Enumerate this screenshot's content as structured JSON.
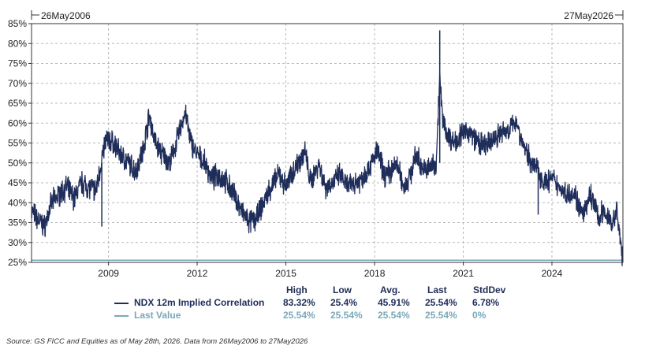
{
  "chart_data": {
    "type": "line",
    "date_range": {
      "start": "26May2006",
      "end": "27May2026"
    },
    "x_range": [
      "2006-05-26",
      "2026-05-27"
    ],
    "ylim": [
      25,
      85
    ],
    "y_ticks": [
      "25%",
      "30%",
      "35%",
      "40%",
      "45%",
      "50%",
      "55%",
      "60%",
      "65%",
      "70%",
      "75%",
      "80%",
      "85%"
    ],
    "y_tick_values": [
      25,
      30,
      35,
      40,
      45,
      50,
      55,
      60,
      65,
      70,
      75,
      80,
      85
    ],
    "x_ticks": [
      "2009",
      "2012",
      "2015",
      "2018",
      "2021",
      "2024"
    ],
    "x_tick_values": [
      "2009-01-01",
      "2012-01-01",
      "2015-01-01",
      "2018-01-01",
      "2021-01-01",
      "2024-01-01"
    ],
    "grid": true,
    "colors": {
      "series": "#1f2d5a",
      "last_value": "#7aa8b8"
    },
    "series": [
      {
        "name": "NDX 12m Implied Correlation",
        "color": "#1f2d5a",
        "x": [
          "2006-05-26",
          "2006-08-01",
          "2006-11-01",
          "2007-02-01",
          "2007-05-01",
          "2007-08-01",
          "2007-11-01",
          "2008-02-01",
          "2008-05-01",
          "2008-08-01",
          "2008-10-01",
          "2008-12-01",
          "2009-03-01",
          "2009-06-01",
          "2009-09-01",
          "2009-12-01",
          "2010-03-01",
          "2010-05-20",
          "2010-08-01",
          "2010-11-01",
          "2011-02-01",
          "2011-05-01",
          "2011-08-10",
          "2011-10-01",
          "2012-01-01",
          "2012-04-01",
          "2012-07-01",
          "2012-10-01",
          "2013-01-01",
          "2013-04-01",
          "2013-07-01",
          "2013-10-01",
          "2014-01-01",
          "2014-04-01",
          "2014-07-01",
          "2014-10-15",
          "2015-01-01",
          "2015-04-01",
          "2015-08-25",
          "2015-11-01",
          "2016-02-11",
          "2016-05-01",
          "2016-08-01",
          "2016-11-01",
          "2017-02-01",
          "2017-05-01",
          "2017-08-01",
          "2017-11-01",
          "2018-02-06",
          "2018-05-01",
          "2018-08-01",
          "2018-10-01",
          "2018-12-24",
          "2019-03-01",
          "2019-06-01",
          "2019-09-01",
          "2019-12-01",
          "2020-02-01",
          "2020-03-16",
          "2020-04-15",
          "2020-06-01",
          "2020-09-01",
          "2020-12-01",
          "2021-03-01",
          "2021-06-01",
          "2021-09-01",
          "2021-12-01",
          "2022-03-01",
          "2022-06-01",
          "2022-09-01",
          "2022-10-15",
          "2022-12-01",
          "2023-03-01",
          "2023-05-01",
          "2023-07-15",
          "2023-10-01",
          "2024-01-01",
          "2024-04-01",
          "2024-07-01",
          "2024-09-01",
          "2024-11-01",
          "2025-01-01",
          "2025-03-01",
          "2025-04-08",
          "2025-06-01",
          "2025-08-01",
          "2025-10-01",
          "2025-12-01",
          "2026-02-01",
          "2026-03-15",
          "2026-04-15",
          "2026-05-27"
        ],
        "values": [
          38,
          36,
          34,
          40,
          42,
          44,
          41,
          45,
          44,
          43,
          50,
          56,
          55,
          52,
          50,
          48,
          53,
          62,
          55,
          52,
          50,
          56,
          63,
          56,
          52,
          50,
          46,
          47,
          45,
          42,
          38,
          35,
          36,
          40,
          44,
          47,
          44,
          48,
          53,
          45,
          50,
          44,
          45,
          47,
          44,
          45,
          46,
          49,
          53,
          47,
          48,
          50,
          44,
          46,
          52,
          48,
          49,
          50,
          72,
          62,
          58,
          55,
          57,
          58,
          56,
          54,
          55,
          57,
          58,
          59,
          61,
          57,
          52,
          50,
          48,
          45,
          46,
          44,
          42,
          43,
          41,
          37,
          38,
          42,
          40,
          36,
          38,
          36,
          35,
          38,
          32,
          25.54
        ]
      },
      {
        "name": "Last Value",
        "color": "#7aa8b8",
        "x": [
          "2006-05-26",
          "2026-05-27"
        ],
        "values": [
          25.54,
          25.54
        ]
      }
    ],
    "spikes": [
      {
        "x": "2008-10-10",
        "from": 34,
        "to": 50
      },
      {
        "x": "2020-03-16",
        "from": 50,
        "to": 83.32
      },
      {
        "x": "2023-07-15",
        "from": 37,
        "to": 49
      }
    ],
    "legend": {
      "placement": "bottom",
      "headers": [
        "High",
        "Low",
        "Avg.",
        "Last",
        "StdDev"
      ],
      "rows": [
        {
          "name": "NDX 12m Implied Correlation",
          "color": "#1f2d5a",
          "values": [
            "83.32%",
            "25.4%",
            "45.91%",
            "25.54%",
            "6.78%"
          ]
        },
        {
          "name": "Last Value",
          "color": "#7aa8b8",
          "values": [
            "25.54%",
            "25.54%",
            "25.54%",
            "25.54%",
            "0%"
          ]
        }
      ]
    }
  },
  "source": "Source: GS FICC and Equities as of May 28th, 2026. Data from 26May2006 to 27May2026"
}
